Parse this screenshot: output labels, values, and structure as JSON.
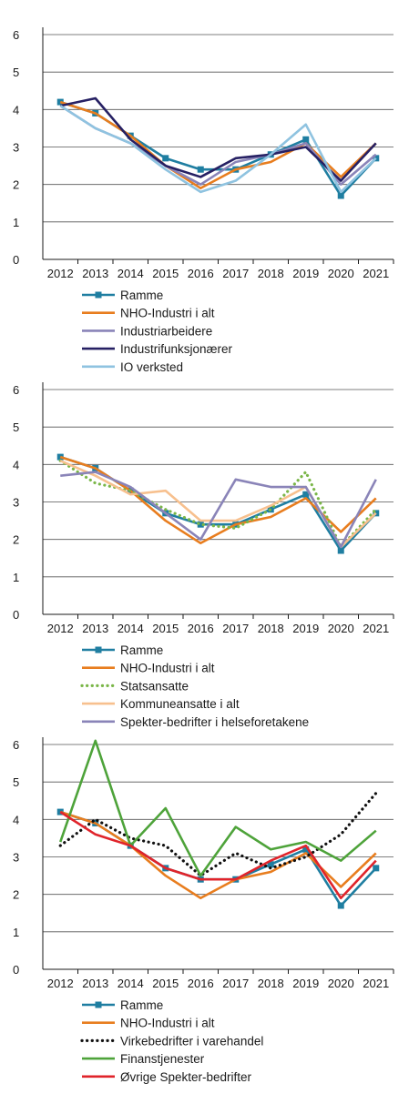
{
  "chart_data": [
    {
      "type": "line",
      "x": [
        "2012",
        "2013",
        "2014",
        "2015",
        "2016",
        "2017",
        "2018",
        "2019",
        "2020",
        "2021"
      ],
      "ylim": [
        0,
        6
      ],
      "yticks": [
        "0",
        "1",
        "2",
        "3",
        "4",
        "5",
        "6"
      ],
      "grid": true,
      "legend_position": "bottom",
      "series": [
        {
          "name": "Ramme",
          "color": "#1f7ea1",
          "style": "solid-marker",
          "values": [
            4.2,
            3.9,
            3.3,
            2.7,
            2.4,
            2.4,
            2.8,
            3.2,
            1.7,
            2.7
          ]
        },
        {
          "name": "NHO-Industri i alt",
          "color": "#e87d1e",
          "style": "solid",
          "values": [
            4.2,
            3.9,
            3.3,
            2.5,
            1.9,
            2.4,
            2.6,
            3.1,
            2.2,
            3.1
          ]
        },
        {
          "name": "Industriarbeidere",
          "color": "#8a84b8",
          "style": "solid",
          "values": [
            4.1,
            3.5,
            3.1,
            2.5,
            2.0,
            2.6,
            2.8,
            3.1,
            2.0,
            2.8
          ]
        },
        {
          "name": "Industrifunksjonærer",
          "color": "#262063",
          "style": "solid",
          "values": [
            4.1,
            4.3,
            3.2,
            2.5,
            2.2,
            2.7,
            2.8,
            3.0,
            2.1,
            3.1
          ]
        },
        {
          "name": "IO verksted",
          "color": "#8fc3e0",
          "style": "solid",
          "values": [
            4.1,
            3.5,
            3.1,
            2.4,
            1.8,
            2.1,
            2.8,
            3.6,
            1.8,
            2.7
          ]
        }
      ]
    },
    {
      "type": "line",
      "x": [
        "2012",
        "2013",
        "2014",
        "2015",
        "2016",
        "2017",
        "2018",
        "2019",
        "2020",
        "2021"
      ],
      "ylim": [
        0,
        6
      ],
      "yticks": [
        "0",
        "1",
        "2",
        "3",
        "4",
        "5",
        "6"
      ],
      "grid": true,
      "legend_position": "bottom",
      "series": [
        {
          "name": "Ramme",
          "color": "#1f7ea1",
          "style": "solid-marker",
          "values": [
            4.2,
            3.9,
            3.3,
            2.7,
            2.4,
            2.4,
            2.8,
            3.2,
            1.7,
            2.7
          ]
        },
        {
          "name": "NHO-Industri i alt",
          "color": "#e87d1e",
          "style": "solid",
          "values": [
            4.2,
            3.9,
            3.3,
            2.5,
            1.9,
            2.4,
            2.6,
            3.1,
            2.2,
            3.1
          ]
        },
        {
          "name": "Statsansatte",
          "color": "#7ab648",
          "style": "dotted",
          "values": [
            4.1,
            3.5,
            3.3,
            2.8,
            2.4,
            2.3,
            2.8,
            3.8,
            1.8,
            2.8
          ]
        },
        {
          "name": "Kommuneansatte i alt",
          "color": "#f7c08e",
          "style": "solid",
          "values": [
            4.1,
            3.7,
            3.2,
            3.3,
            2.5,
            2.5,
            2.9,
            3.4,
            1.8,
            2.7
          ]
        },
        {
          "name": "Spekter-bedrifter i helseforetakene",
          "color": "#8a84b8",
          "style": "solid",
          "values": [
            3.7,
            3.8,
            3.4,
            2.7,
            2.0,
            3.6,
            3.4,
            3.4,
            1.8,
            3.6
          ]
        }
      ]
    },
    {
      "type": "line",
      "x": [
        "2012",
        "2013",
        "2014",
        "2015",
        "2016",
        "2017",
        "2018",
        "2019",
        "2020",
        "2021"
      ],
      "ylim": [
        0,
        6
      ],
      "yticks": [
        "0",
        "1",
        "2",
        "3",
        "4",
        "5",
        "6"
      ],
      "grid": true,
      "legend_position": "bottom",
      "series": [
        {
          "name": "Ramme",
          "color": "#1f7ea1",
          "style": "solid-marker",
          "values": [
            4.2,
            3.9,
            3.3,
            2.7,
            2.4,
            2.4,
            2.8,
            3.2,
            1.7,
            2.7
          ]
        },
        {
          "name": "NHO-Industri i alt",
          "color": "#e87d1e",
          "style": "solid",
          "values": [
            4.2,
            3.9,
            3.3,
            2.5,
            1.9,
            2.4,
            2.6,
            3.1,
            2.2,
            3.1
          ]
        },
        {
          "name": "Virkebedrifter i varehandel",
          "color": "#111111",
          "style": "dotted",
          "values": [
            3.3,
            4.0,
            3.5,
            3.3,
            2.5,
            3.1,
            2.7,
            3.0,
            3.6,
            4.7
          ]
        },
        {
          "name": "Finanstjenester",
          "color": "#4ea33a",
          "style": "solid",
          "values": [
            3.4,
            6.1,
            3.3,
            4.3,
            2.5,
            3.8,
            3.2,
            3.4,
            2.9,
            3.7
          ]
        },
        {
          "name": "Øvrige Spekter-bedrifter",
          "color": "#e0242b",
          "style": "solid",
          "values": [
            4.2,
            3.6,
            3.3,
            2.7,
            2.4,
            2.4,
            2.9,
            3.3,
            1.9,
            2.9
          ]
        }
      ]
    }
  ]
}
